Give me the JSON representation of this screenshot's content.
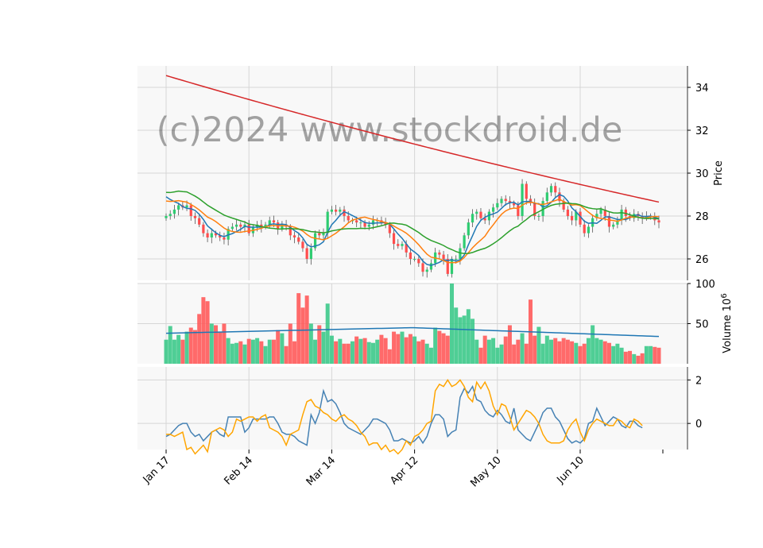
{
  "watermark": "(c)2024 www.stockdroid.de",
  "chart_data": [
    {
      "type": "candlestick",
      "panel": "price",
      "ylabel": "Price",
      "ylim": [
        25,
        35
      ],
      "yticks": [
        26,
        28,
        30,
        32,
        34
      ],
      "x_tick_labels": [
        "Jan 17",
        "Feb 14",
        "Mar 14",
        "Apr 12",
        "May 10",
        "Jun 10"
      ],
      "x_tick_index": [
        0,
        20,
        40,
        60,
        80,
        100
      ],
      "n_bars": 120,
      "close": [
        28.0,
        28.1,
        28.3,
        28.5,
        28.4,
        28.5,
        28.0,
        27.9,
        27.6,
        27.2,
        27.0,
        27.2,
        27.1,
        27.0,
        26.9,
        27.4,
        27.5,
        27.6,
        27.5,
        27.6,
        27.2,
        27.5,
        27.6,
        27.5,
        27.6,
        27.8,
        27.7,
        27.4,
        27.6,
        27.5,
        27.1,
        27.0,
        26.8,
        26.5,
        26.0,
        26.5,
        27.2,
        27.1,
        27.2,
        28.2,
        28.3,
        28.2,
        28.3,
        28.0,
        27.8,
        27.8,
        27.7,
        27.7,
        27.5,
        27.6,
        27.8,
        27.8,
        27.7,
        27.6,
        27.2,
        26.7,
        26.6,
        26.7,
        26.3,
        26.0,
        26.0,
        25.8,
        25.4,
        25.5,
        25.8,
        26.3,
        26.2,
        26.0,
        25.3,
        26.0,
        26.0,
        26.5,
        27.1,
        27.7,
        28.1,
        28.2,
        27.9,
        27.8,
        28.2,
        28.4,
        28.6,
        28.8,
        28.7,
        28.6,
        28.5,
        28.0,
        29.5,
        28.8,
        28.6,
        28.0,
        28.0,
        28.7,
        29.1,
        29.4,
        29.1,
        28.7,
        28.3,
        28.0,
        27.8,
        28.2,
        27.6,
        27.2,
        27.5,
        27.9,
        28.1,
        28.3,
        28.0,
        27.5,
        27.6,
        27.8,
        28.3,
        28.0,
        27.9,
        28.1,
        28.0,
        27.9,
        28.0,
        28.0,
        27.8,
        27.7
      ],
      "moving_averages": [
        {
          "window": 5,
          "color": "#1f77b4"
        },
        {
          "window": 10,
          "color": "#ff7f0e"
        },
        {
          "window": 20,
          "color": "#2ca02c"
        },
        {
          "window": 200,
          "color": "#d62728",
          "start": 34.55,
          "end": 28.65
        }
      ],
      "up_color": "#2ecc71",
      "down_color": "#ff4d4d"
    },
    {
      "type": "bar",
      "panel": "volume",
      "ylabel": "Volume",
      "ylabel_exponent": "6",
      "ylim": [
        0,
        100
      ],
      "yticks": [
        50,
        100
      ],
      "values": [
        30,
        47,
        30,
        36,
        30,
        40,
        45,
        42,
        62,
        83,
        78,
        50,
        48,
        40,
        50,
        32,
        25,
        26,
        28,
        24,
        31,
        30,
        32,
        28,
        22,
        30,
        30,
        42,
        38,
        22,
        50,
        28,
        88,
        70,
        85,
        50,
        30,
        48,
        40,
        75,
        35,
        28,
        31,
        25,
        25,
        28,
        34,
        31,
        32,
        27,
        26,
        30,
        36,
        32,
        18,
        40,
        37,
        40,
        33,
        37,
        34,
        28,
        30,
        25,
        20,
        45,
        41,
        38,
        35,
        100,
        70,
        58,
        60,
        68,
        56,
        30,
        20,
        35,
        30,
        32,
        20,
        24,
        34,
        48,
        24,
        30,
        38,
        25,
        80,
        35,
        46,
        25,
        35,
        30,
        32,
        28,
        32,
        30,
        28,
        26,
        22,
        25,
        32,
        48,
        32,
        30,
        28,
        26,
        22,
        25,
        20,
        15,
        16,
        12,
        10,
        13,
        22,
        22,
        21,
        20
      ],
      "ma_start": 38,
      "ma_mid": 45,
      "ma_end": 34,
      "ma_color": "#1f77b4"
    },
    {
      "type": "line",
      "panel": "oscillator",
      "ylim": [
        -1.2,
        2.6
      ],
      "yticks": [
        0,
        2
      ],
      "series": [
        {
          "color": "#4682b4",
          "values": [
            -0.6,
            -0.5,
            -0.3,
            -0.1,
            0.0,
            0.0,
            -0.4,
            -0.6,
            -0.5,
            -0.8,
            -0.6,
            -0.4,
            -0.3,
            -0.5,
            -0.6,
            0.3,
            0.3,
            0.3,
            0.3,
            -0.4,
            -0.2,
            0.2,
            0.2,
            0.2,
            0.2,
            0.3,
            0.3,
            0.0,
            -0.4,
            -0.5,
            -0.5,
            -0.6,
            -0.8,
            -0.9,
            -1.0,
            0.4,
            0.0,
            0.5,
            1.5,
            1.0,
            1.1,
            0.9,
            0.5,
            0.0,
            -0.2,
            -0.3,
            -0.4,
            -0.5,
            -0.3,
            -0.1,
            0.2,
            0.2,
            0.1,
            0.0,
            -0.3,
            -0.8,
            -0.8,
            -0.7,
            -0.8,
            -0.9,
            -0.8,
            -0.6,
            -0.9,
            -0.6,
            0.0,
            0.4,
            0.4,
            0.2,
            -0.6,
            -0.4,
            -0.3,
            1.2,
            1.6,
            1.4,
            1.7,
            1.1,
            1.0,
            0.6,
            0.4,
            0.3,
            0.6,
            0.4,
            0.1,
            0.0,
            0.7,
            -0.3,
            -0.5,
            -0.7,
            -0.8,
            -0.4,
            0.0,
            0.5,
            0.7,
            0.7,
            0.3,
            0.1,
            -0.3,
            -0.7,
            -0.9,
            -0.8,
            -0.9,
            -0.7,
            0.0,
            0.1,
            0.7,
            0.3,
            -0.1,
            0.1,
            0.3,
            0.2,
            -0.1,
            -0.2,
            0.1,
            0.1,
            -0.1,
            -0.2
          ]
        },
        {
          "color": "#ffa500",
          "values": [
            -0.5,
            -0.5,
            -0.6,
            -0.5,
            -0.4,
            -1.2,
            -1.1,
            -1.4,
            -1.2,
            -1.0,
            -1.3,
            -0.4,
            -0.3,
            -0.2,
            -0.3,
            -0.6,
            -0.4,
            0.2,
            0.1,
            0.2,
            0.3,
            0.3,
            0.1,
            0.3,
            0.4,
            -0.2,
            -0.3,
            -0.4,
            -0.6,
            -1.0,
            -0.5,
            -0.4,
            -0.3,
            0.4,
            1.0,
            1.1,
            0.8,
            0.7,
            0.5,
            0.4,
            0.2,
            0.1,
            0.3,
            0.4,
            0.2,
            0.1,
            -0.1,
            -0.4,
            -0.6,
            -1.0,
            -0.9,
            -0.9,
            -1.2,
            -1.0,
            -1.3,
            -1.2,
            -1.4,
            -1.2,
            -0.8,
            -1.0,
            -0.6,
            -0.5,
            -0.3,
            0.0,
            0.1,
            1.5,
            1.8,
            1.7,
            2.0,
            1.7,
            1.8,
            2.0,
            1.7,
            1.2,
            1.0,
            1.9,
            1.6,
            1.9,
            1.5,
            0.8,
            0.4,
            0.9,
            0.8,
            0.3,
            -0.3,
            0.0,
            0.3,
            0.6,
            0.5,
            0.3,
            0.0,
            -0.5,
            -0.8,
            -0.9,
            -0.9,
            -0.9,
            -0.8,
            -0.3,
            0.0,
            0.2,
            -0.4,
            -0.8,
            -0.3,
            0.0,
            0.2,
            0.1,
            0.0,
            -0.1,
            -0.1,
            0.2,
            0.1,
            -0.1,
            -0.2,
            0.2,
            0.1,
            -0.1
          ]
        }
      ]
    }
  ]
}
